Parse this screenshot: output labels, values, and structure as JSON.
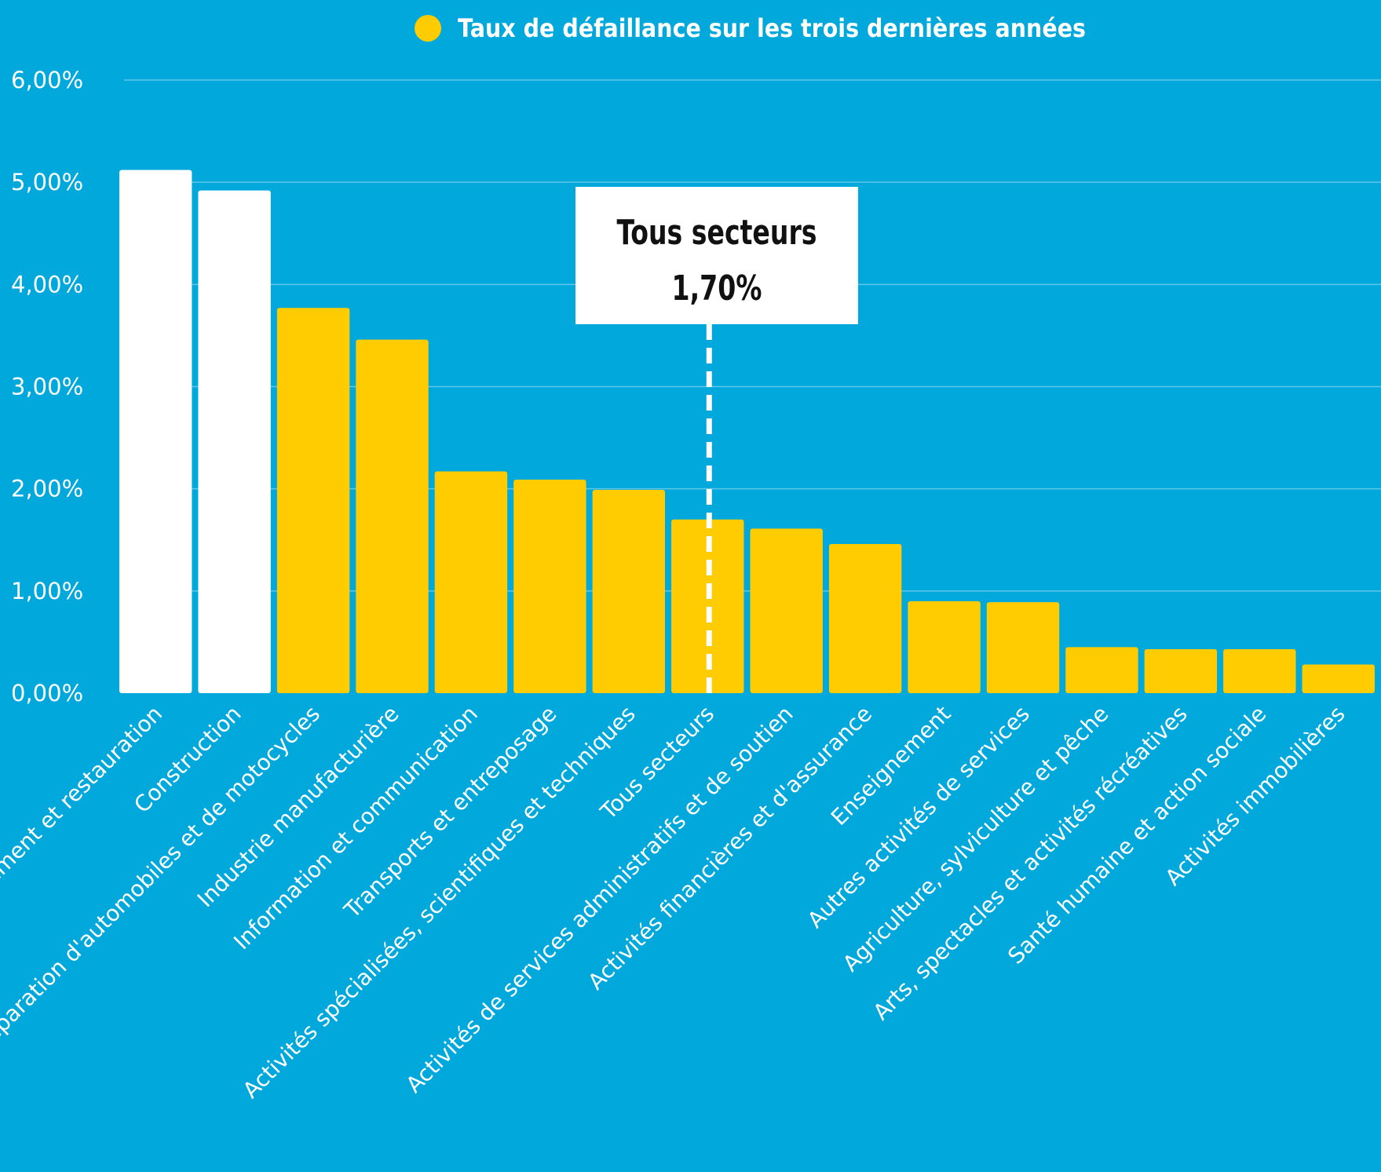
{
  "chart_data": {
    "type": "bar",
    "legend": {
      "label": "Taux de défaillance sur les trois dernières années",
      "placement": "top-center"
    },
    "categories": [
      "Hébergement et restauration",
      "Construction",
      "Commerce ; réparation d'automobiles et de motocycles",
      "Industrie manufacturière",
      "Information et communication",
      "Transports et entreposage",
      "Activités spécialisées, scientifiques et techniques",
      "Tous secteurs",
      "Activités de services administratifs et de soutien",
      "Activités financières et d'assurance",
      "Enseignement",
      "Autres activités de services",
      "Agriculture, sylviculture et pêche",
      "Arts, spectacles et activités récréatives",
      "Santé humaine et action sociale",
      "Activités immobilières"
    ],
    "series": [
      {
        "name": "Taux de défaillance sur les trois dernières années",
        "values": [
          5.12,
          4.92,
          3.77,
          3.46,
          2.17,
          2.09,
          1.99,
          1.7,
          1.61,
          1.46,
          0.9,
          0.89,
          0.45,
          0.43,
          0.43,
          0.28
        ]
      }
    ],
    "highlighted_categories": [
      0,
      1
    ],
    "y_ticks": [
      "0,00%",
      "1,00%",
      "2,00%",
      "3,00%",
      "4,00%",
      "5,00%",
      "6,00%"
    ],
    "ylim": [
      0,
      6
    ],
    "grid": true,
    "reference_line": {
      "category_index": 7,
      "label_line1": "Tous secteurs",
      "label_line2": "1,70%"
    },
    "colors": {
      "background": "#00a8dc",
      "bar": "#fecc00",
      "highlight_bar": "#ffffff",
      "grid": "#5fc6ea",
      "text": "#ffffff",
      "callout_text": "#111111"
    }
  }
}
